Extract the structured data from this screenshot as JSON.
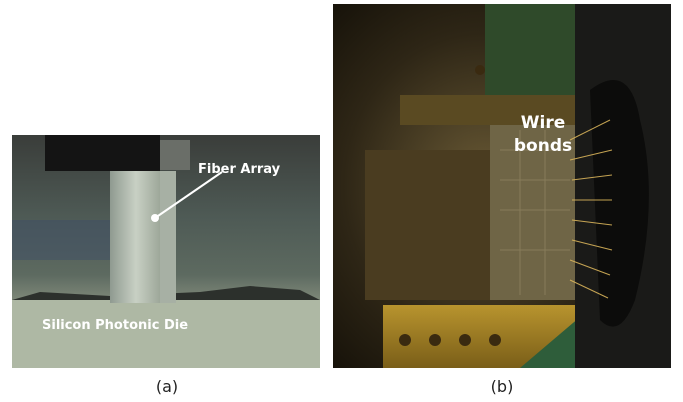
{
  "panel_a": {
    "labels": {
      "fiber_array": "Fiber Array",
      "die": "Silicon Photonic Die"
    },
    "caption": "(a)"
  },
  "panel_b": {
    "labels": {
      "wire_bonds": "Wire bonds"
    },
    "caption": "(b)"
  }
}
